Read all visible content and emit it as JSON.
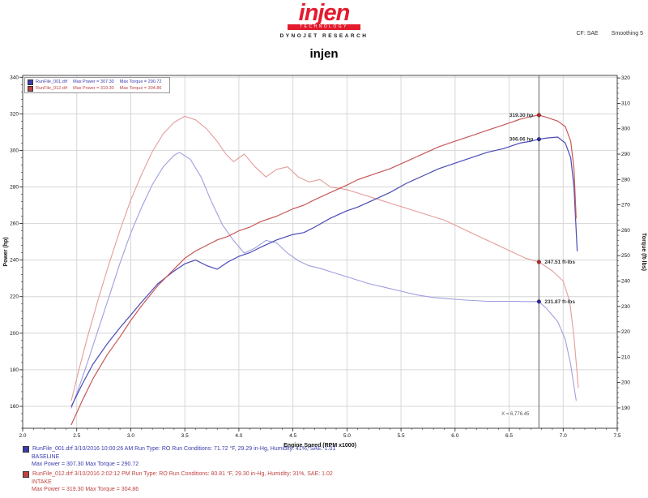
{
  "header": {
    "logo_text": "injen",
    "logo_sub": "TECHNOLOGY",
    "dyno_brand": "DYNOJET RESEARCH",
    "calibration": "CF: SAE",
    "smoothing": "Smoothing 5",
    "title": "injen"
  },
  "colors": {
    "accent_red": "#e31b2d",
    "run_blue": "#3b3bae",
    "run_red": "#c04343",
    "grid": "#d6d6d6"
  },
  "legend": {
    "runs": [
      {
        "file": "RunFile_001.drf",
        "max_power": "Max Power = 307.30",
        "max_torque": "Max Torque = 290.72"
      },
      {
        "file": "RunFile_012.drf",
        "max_power": "Max Power = 319.30",
        "max_torque": "Max Torque = 304.86"
      }
    ]
  },
  "footer": {
    "runs": [
      {
        "line1": "RunFile_001.drf  3/10/2016 10:00:26 AM  Run Type: RO  Run Conditions: 71.72 °F, 29.29 in-Hg, Humidity: 41%, SAE: 1.01",
        "line2": "BASELINE",
        "line3": "Max Power = 307.30  Max Torque = 290.72"
      },
      {
        "line1": "RunFile_012.drf  3/10/2016 2:02:12 PM  Run Type: RO  Run Conditions: 80.81 °F, 29.30 in-Hg, Humidity: 31%, SAE: 1.02",
        "line2": "INTAKE",
        "line3": "Max Power = 319.30  Max Torque = 304.86"
      }
    ]
  },
  "chart_data": {
    "type": "line",
    "title": "injen",
    "xlabel": "Engine Speed (RPM x1000)",
    "ylabel_left": "Power (hp)",
    "ylabel_right": "Torque (ft-lbs)",
    "grid": true,
    "axes": {
      "x": {
        "min": 2.0,
        "max": 7.5,
        "minor_step": 0.1,
        "ticks": [
          "2.0",
          "2.5",
          "3.0",
          "3.5",
          "4.0",
          "4.5",
          "5.0",
          "5.5",
          "6.0",
          "6.5",
          "7.0",
          "7.5"
        ]
      },
      "left": {
        "min": 148,
        "max": 341,
        "minor_step": 4,
        "ticks": [
          340,
          320,
          300,
          280,
          260,
          240,
          220,
          200,
          180,
          160
        ]
      },
      "right": {
        "min": 182,
        "max": 321,
        "minor_step": 2,
        "ticks": [
          320,
          310,
          300,
          290,
          280,
          270,
          260,
          250,
          240,
          230,
          220,
          210,
          200,
          190
        ]
      }
    },
    "series": [
      {
        "name": "torque-baseline",
        "axis": "right",
        "color": "#9f9fde",
        "width": 1.1,
        "marker": "#2a2ab0",
        "points": [
          [
            2.45,
            190
          ],
          [
            2.52,
            198
          ],
          [
            2.6,
            208
          ],
          [
            2.7,
            221
          ],
          [
            2.8,
            234
          ],
          [
            2.9,
            247
          ],
          [
            3.0,
            259
          ],
          [
            3.1,
            269
          ],
          [
            3.2,
            278
          ],
          [
            3.3,
            285
          ],
          [
            3.4,
            289.5
          ],
          [
            3.45,
            290.7
          ],
          [
            3.55,
            288
          ],
          [
            3.65,
            281
          ],
          [
            3.75,
            271
          ],
          [
            3.85,
            262
          ],
          [
            3.95,
            256
          ],
          [
            4.05,
            251
          ],
          [
            4.15,
            253
          ],
          [
            4.25,
            256
          ],
          [
            4.35,
            255
          ],
          [
            4.45,
            251
          ],
          [
            4.55,
            248
          ],
          [
            4.65,
            246
          ],
          [
            4.75,
            245
          ],
          [
            4.9,
            243
          ],
          [
            5.05,
            241
          ],
          [
            5.2,
            239
          ],
          [
            5.35,
            237.5
          ],
          [
            5.5,
            236
          ],
          [
            5.65,
            234.5
          ],
          [
            5.8,
            233.5
          ],
          [
            5.95,
            233
          ],
          [
            6.1,
            232.5
          ],
          [
            6.3,
            232
          ],
          [
            6.5,
            232
          ],
          [
            6.65,
            231.9
          ],
          [
            6.776,
            231.9
          ],
          [
            6.85,
            229
          ],
          [
            6.95,
            224
          ],
          [
            7.02,
            217
          ],
          [
            7.07,
            207
          ],
          [
            7.12,
            193
          ]
        ]
      },
      {
        "name": "torque-injen",
        "axis": "right",
        "color": "#e49c9c",
        "width": 1.1,
        "marker": "#c02828",
        "points": [
          [
            2.45,
            193
          ],
          [
            2.52,
            205
          ],
          [
            2.6,
            218
          ],
          [
            2.7,
            233
          ],
          [
            2.8,
            247
          ],
          [
            2.9,
            260
          ],
          [
            3.0,
            272
          ],
          [
            3.1,
            282
          ],
          [
            3.2,
            291
          ],
          [
            3.3,
            298
          ],
          [
            3.4,
            302.5
          ],
          [
            3.5,
            304.9
          ],
          [
            3.6,
            303.5
          ],
          [
            3.7,
            300
          ],
          [
            3.8,
            295
          ],
          [
            3.88,
            290
          ],
          [
            3.95,
            287
          ],
          [
            4.05,
            290
          ],
          [
            4.15,
            285
          ],
          [
            4.25,
            281
          ],
          [
            4.35,
            284
          ],
          [
            4.45,
            285
          ],
          [
            4.55,
            281
          ],
          [
            4.65,
            279
          ],
          [
            4.75,
            280
          ],
          [
            4.85,
            277
          ],
          [
            5.0,
            276
          ],
          [
            5.15,
            274
          ],
          [
            5.3,
            272
          ],
          [
            5.45,
            270
          ],
          [
            5.6,
            268
          ],
          [
            5.75,
            266
          ],
          [
            5.9,
            264
          ],
          [
            6.05,
            261
          ],
          [
            6.2,
            258
          ],
          [
            6.35,
            255
          ],
          [
            6.5,
            252
          ],
          [
            6.65,
            249
          ],
          [
            6.776,
            247.5
          ],
          [
            6.9,
            244
          ],
          [
            7.0,
            240
          ],
          [
            7.06,
            232
          ],
          [
            7.1,
            218
          ],
          [
            7.14,
            198
          ]
        ]
      },
      {
        "name": "power-baseline",
        "axis": "left",
        "color": "#4a4ab8",
        "width": 1.2,
        "marker": "#2a2ab0",
        "points": [
          [
            2.45,
            160
          ],
          [
            2.55,
            172
          ],
          [
            2.65,
            183
          ],
          [
            2.78,
            194
          ],
          [
            2.9,
            203
          ],
          [
            3.0,
            210
          ],
          [
            3.1,
            217
          ],
          [
            3.25,
            227
          ],
          [
            3.4,
            234
          ],
          [
            3.5,
            238
          ],
          [
            3.6,
            240
          ],
          [
            3.7,
            237
          ],
          [
            3.8,
            235
          ],
          [
            3.9,
            239
          ],
          [
            4.0,
            242
          ],
          [
            4.1,
            244
          ],
          [
            4.2,
            247
          ],
          [
            4.35,
            251
          ],
          [
            4.5,
            254
          ],
          [
            4.6,
            255
          ],
          [
            4.7,
            258
          ],
          [
            4.85,
            263
          ],
          [
            5.0,
            267
          ],
          [
            5.1,
            269
          ],
          [
            5.25,
            273
          ],
          [
            5.4,
            277
          ],
          [
            5.55,
            282
          ],
          [
            5.7,
            286
          ],
          [
            5.85,
            290
          ],
          [
            6.0,
            293
          ],
          [
            6.15,
            296
          ],
          [
            6.3,
            299
          ],
          [
            6.45,
            301
          ],
          [
            6.6,
            304
          ],
          [
            6.7,
            305
          ],
          [
            6.776,
            306.1
          ],
          [
            6.85,
            306.8
          ],
          [
            6.95,
            307.3
          ],
          [
            7.02,
            304
          ],
          [
            7.07,
            296
          ],
          [
            7.1,
            280
          ],
          [
            7.13,
            245
          ]
        ]
      },
      {
        "name": "power-injen",
        "axis": "left",
        "color": "#c85858",
        "width": 1.2,
        "marker": "#c02828",
        "points": [
          [
            2.45,
            150
          ],
          [
            2.55,
            163
          ],
          [
            2.65,
            175
          ],
          [
            2.78,
            188
          ],
          [
            2.9,
            198
          ],
          [
            3.0,
            207
          ],
          [
            3.1,
            215
          ],
          [
            3.25,
            226
          ],
          [
            3.4,
            235
          ],
          [
            3.5,
            241
          ],
          [
            3.6,
            245
          ],
          [
            3.7,
            248
          ],
          [
            3.8,
            251
          ],
          [
            3.9,
            253
          ],
          [
            4.0,
            256
          ],
          [
            4.1,
            258
          ],
          [
            4.2,
            261
          ],
          [
            4.35,
            264
          ],
          [
            4.5,
            268
          ],
          [
            4.6,
            270
          ],
          [
            4.7,
            273
          ],
          [
            4.85,
            277
          ],
          [
            5.0,
            281
          ],
          [
            5.1,
            284
          ],
          [
            5.25,
            287
          ],
          [
            5.4,
            290
          ],
          [
            5.55,
            294
          ],
          [
            5.7,
            298
          ],
          [
            5.85,
            302
          ],
          [
            6.0,
            305
          ],
          [
            6.15,
            308
          ],
          [
            6.3,
            311
          ],
          [
            6.45,
            314
          ],
          [
            6.6,
            317
          ],
          [
            6.7,
            318.5
          ],
          [
            6.776,
            319.3
          ],
          [
            6.85,
            318
          ],
          [
            6.95,
            316
          ],
          [
            7.02,
            313
          ],
          [
            7.07,
            305
          ],
          [
            7.1,
            290
          ],
          [
            7.12,
            263
          ]
        ]
      }
    ],
    "cursor": {
      "rpm": 6.776,
      "bottom_label": "X = 6,776.45",
      "point_labels": [
        {
          "series": "power-injen",
          "text": "319.30 hp",
          "side": "left"
        },
        {
          "series": "power-baseline",
          "text": "306.06 hp",
          "side": "left"
        },
        {
          "series": "torque-injen",
          "text": "247.51 ft-lbs",
          "side": "right"
        },
        {
          "series": "torque-baseline",
          "text": "231.87 ft-lbs",
          "side": "right"
        }
      ]
    }
  }
}
